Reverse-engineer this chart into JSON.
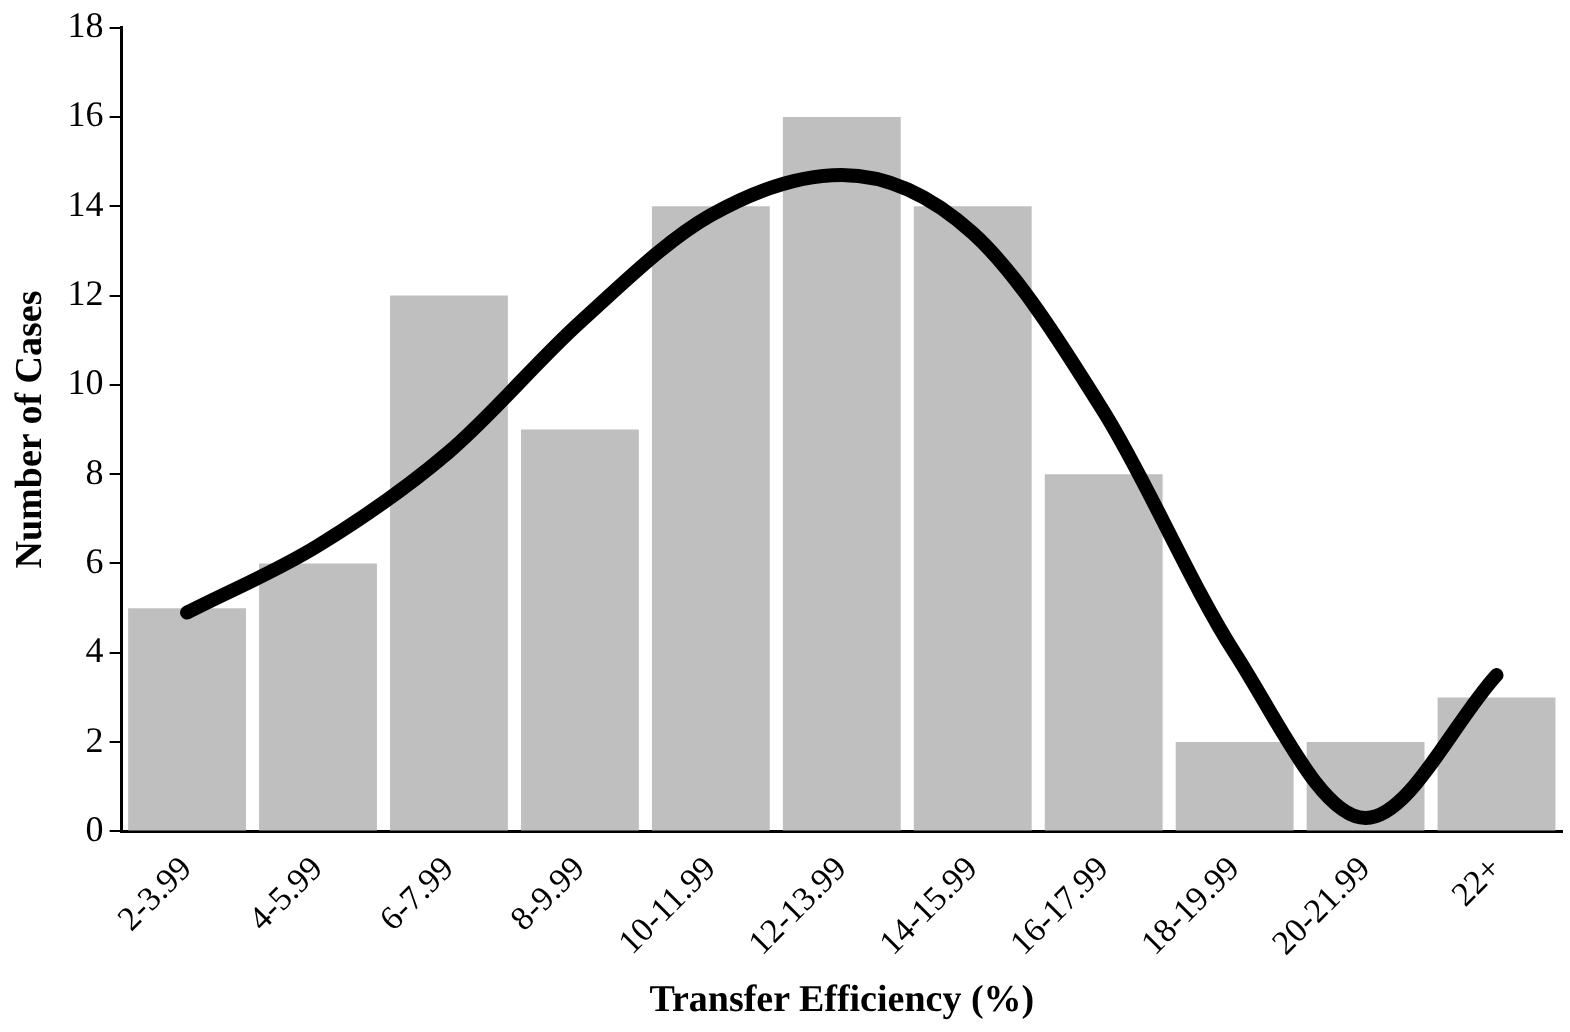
{
  "chart_data": {
    "type": "bar",
    "xlabel": "Transfer Efficiency (%)",
    "ylabel": "Number of Cases",
    "categories": [
      "2-3.99",
      "4-5.99",
      "6-7.99",
      "8-9.99",
      "10-11.99",
      "12-13.99",
      "14-15.99",
      "16-17.99",
      "18-19.99",
      "20-21.99",
      "22+"
    ],
    "series": [
      {
        "color": "#bfbfbf",
        "values": [
          5,
          6,
          12,
          9,
          14,
          16,
          14,
          8,
          2,
          2,
          3
        ]
      },
      {
        "type": "line",
        "color": "#000000",
        "values": [
          4.9,
          6.4,
          8.5,
          11.4,
          13.8,
          14.7,
          13.4,
          9.4,
          4.0,
          0.3,
          3.5
        ]
      }
    ],
    "ylim": [
      0,
      18
    ],
    "yticks": [
      0,
      2,
      4,
      6,
      8,
      10,
      12,
      14,
      16,
      18
    ],
    "grid": false,
    "legend": false,
    "marker": "none"
  }
}
